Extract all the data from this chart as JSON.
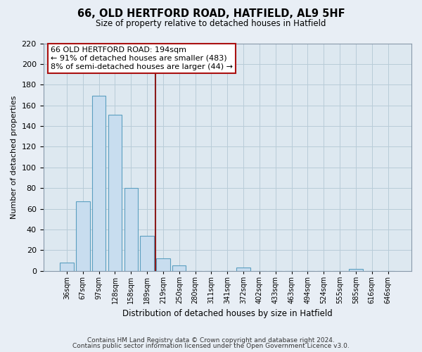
{
  "title1": "66, OLD HERTFORD ROAD, HATFIELD, AL9 5HF",
  "title2": "Size of property relative to detached houses in Hatfield",
  "xlabel": "Distribution of detached houses by size in Hatfield",
  "ylabel": "Number of detached properties",
  "bar_labels": [
    "36sqm",
    "67sqm",
    "97sqm",
    "128sqm",
    "158sqm",
    "189sqm",
    "219sqm",
    "250sqm",
    "280sqm",
    "311sqm",
    "341sqm",
    "372sqm",
    "402sqm",
    "433sqm",
    "463sqm",
    "494sqm",
    "524sqm",
    "555sqm",
    "585sqm",
    "616sqm",
    "646sqm"
  ],
  "bar_values": [
    8,
    67,
    169,
    151,
    80,
    34,
    12,
    5,
    0,
    0,
    0,
    3,
    0,
    0,
    0,
    0,
    0,
    0,
    2,
    0,
    0
  ],
  "bar_color": "#c8ddef",
  "bar_edge_color": "#5b9fc0",
  "vline_x": 5.5,
  "vline_color": "#8b1a1a",
  "annotation_title": "66 OLD HERTFORD ROAD: 194sqm",
  "annotation_line1": "← 91% of detached houses are smaller (483)",
  "annotation_line2": "8% of semi-detached houses are larger (44) →",
  "annotation_box_color": "#ffffff",
  "annotation_box_edge": "#aa1111",
  "ylim": [
    0,
    220
  ],
  "yticks": [
    0,
    20,
    40,
    60,
    80,
    100,
    120,
    140,
    160,
    180,
    200,
    220
  ],
  "footer1": "Contains HM Land Registry data © Crown copyright and database right 2024.",
  "footer2": "Contains public sector information licensed under the Open Government Licence v3.0.",
  "bg_color": "#e8eef5",
  "plot_bg_color": "#dde8f0"
}
